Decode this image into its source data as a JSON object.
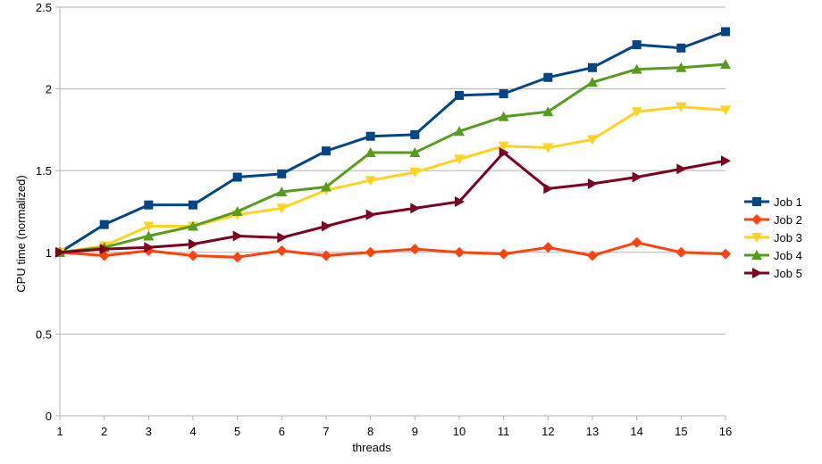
{
  "chart_data": {
    "type": "line",
    "title": "",
    "xlabel": "threads",
    "ylabel": "CPU time (normalized)",
    "x": [
      1,
      2,
      3,
      4,
      5,
      6,
      7,
      8,
      9,
      10,
      11,
      12,
      13,
      14,
      15,
      16
    ],
    "xlim": [
      1,
      16
    ],
    "ylim": [
      0,
      2.5
    ],
    "yticks": [
      "0",
      "0.5",
      "1",
      "1.5",
      "2",
      "2.5"
    ],
    "ytick_values": [
      0,
      0.5,
      1,
      1.5,
      2,
      2.5
    ],
    "grid": "horizontal",
    "legend": "right",
    "series": [
      {
        "name": "Job 1",
        "color": "#004586",
        "marker": "square",
        "values": [
          1.0,
          1.17,
          1.29,
          1.29,
          1.46,
          1.48,
          1.62,
          1.71,
          1.72,
          1.96,
          1.97,
          2.07,
          2.13,
          2.27,
          2.25,
          2.35
        ]
      },
      {
        "name": "Job 2",
        "color": "#ff420e",
        "marker": "diamond",
        "values": [
          1.0,
          0.98,
          1.01,
          0.98,
          0.97,
          1.01,
          0.98,
          1.0,
          1.02,
          1.0,
          0.99,
          1.03,
          0.98,
          1.06,
          1.0,
          0.99
        ]
      },
      {
        "name": "Job 3",
        "color": "#ffd320",
        "marker": "triangle-down",
        "values": [
          1.0,
          1.04,
          1.16,
          1.16,
          1.23,
          1.27,
          1.38,
          1.44,
          1.49,
          1.57,
          1.65,
          1.64,
          1.69,
          1.86,
          1.89,
          1.87
        ]
      },
      {
        "name": "Job 4",
        "color": "#579d1c",
        "marker": "triangle-up",
        "values": [
          1.0,
          1.03,
          1.1,
          1.16,
          1.25,
          1.37,
          1.4,
          1.61,
          1.61,
          1.74,
          1.83,
          1.86,
          2.04,
          2.12,
          2.13,
          2.15
        ]
      },
      {
        "name": "Job 5",
        "color": "#7e0021",
        "marker": "triangle-right",
        "values": [
          1.0,
          1.02,
          1.03,
          1.05,
          1.1,
          1.09,
          1.16,
          1.23,
          1.27,
          1.31,
          1.61,
          1.39,
          1.42,
          1.46,
          1.51,
          1.56
        ]
      }
    ]
  }
}
